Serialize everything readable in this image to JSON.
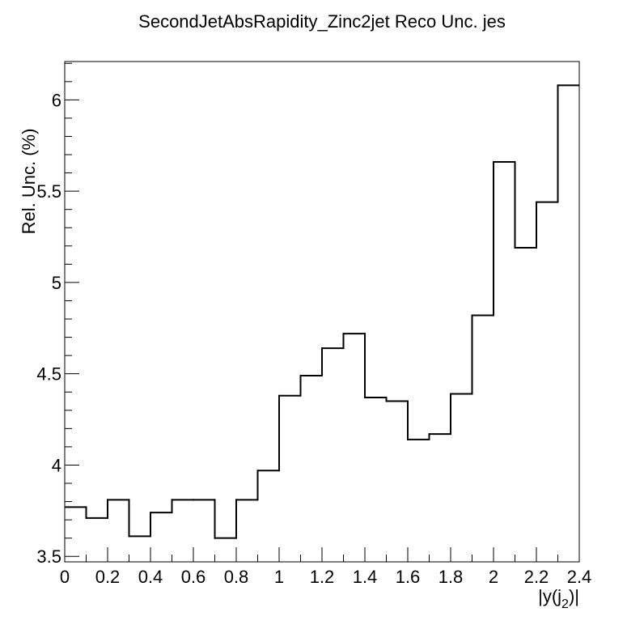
{
  "chart_data": {
    "type": "bar",
    "style": "step-histogram",
    "title": "SecondJetAbsRapidity_Zinc2jet Reco Unc. jes",
    "xlabel": "|y(j_2)|",
    "xlabel_main": "|y(j",
    "xlabel_sub": "2",
    "xlabel_end": ")|",
    "ylabel": "Rel. Unc. (%)",
    "xlim": [
      0,
      2.4
    ],
    "ylim": [
      3.47,
      6.21
    ],
    "x_ticks": [
      "0",
      "0.2",
      "0.4",
      "0.6",
      "0.8",
      "1",
      "1.2",
      "1.4",
      "1.6",
      "1.8",
      "2",
      "2.2",
      "2.4"
    ],
    "x_tick_values": [
      0,
      0.2,
      0.4,
      0.6,
      0.8,
      1.0,
      1.2,
      1.4,
      1.6,
      1.8,
      2.0,
      2.2,
      2.4
    ],
    "y_ticks": [
      "3.5",
      "4",
      "4.5",
      "5",
      "5.5",
      "6"
    ],
    "y_tick_values": [
      3.5,
      4.0,
      4.5,
      5.0,
      5.5,
      6.0
    ],
    "bin_edges": [
      0,
      0.1,
      0.2,
      0.3,
      0.4,
      0.5,
      0.6,
      0.7,
      0.8,
      0.9,
      1.0,
      1.1,
      1.2,
      1.3,
      1.4,
      1.5,
      1.6,
      1.7,
      1.8,
      1.9,
      2.0,
      2.1,
      2.2,
      2.3,
      2.4
    ],
    "values": [
      3.77,
      3.71,
      3.81,
      3.61,
      3.74,
      3.81,
      3.81,
      3.6,
      3.81,
      3.97,
      4.38,
      4.49,
      4.64,
      4.72,
      4.37,
      4.35,
      4.14,
      4.17,
      4.39,
      4.82,
      5.66,
      5.19,
      5.44,
      6.08
    ],
    "grid": false,
    "legend": "none"
  }
}
